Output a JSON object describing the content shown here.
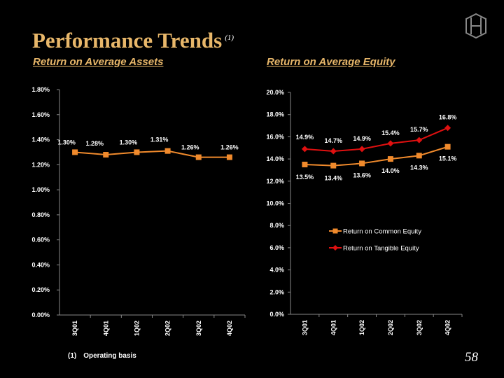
{
  "header": {
    "title": "Performance Trends",
    "title_footnote_marker": "(1)"
  },
  "footer": {
    "footnote_marker": "(1)",
    "footnote_text": "Operating basis",
    "page_number": "58"
  },
  "colors": {
    "title": "#e8b76a",
    "series_common": "#f08a2c",
    "series_tangible": "#e01010",
    "background": "#000000"
  },
  "chart_data": [
    {
      "type": "line",
      "title": "Return on Average Assets",
      "categories": [
        "3Q01",
        "4Q01",
        "1Q02",
        "2Q02",
        "3Q02",
        "4Q02"
      ],
      "series": [
        {
          "values": [
            1.3,
            1.28,
            1.3,
            1.31,
            1.26,
            1.26
          ],
          "labels": [
            "1.30%",
            "1.28%",
            "1.30%",
            "1.31%",
            "1.26%",
            "1.26%"
          ],
          "color": "#f08a2c",
          "marker": "square"
        }
      ],
      "ylim": [
        0,
        1.8
      ],
      "yticks": [
        "0.00%",
        "0.20%",
        "0.40%",
        "0.60%",
        "0.80%",
        "1.00%",
        "1.20%",
        "1.40%",
        "1.60%",
        "1.80%"
      ],
      "grid": false,
      "legend": "none"
    },
    {
      "type": "line",
      "title": "Return on Average Equity",
      "categories": [
        "3Q01",
        "4Q01",
        "1Q02",
        "2Q02",
        "3Q02",
        "4Q02"
      ],
      "series": [
        {
          "name": "Return on Common Equity",
          "values": [
            13.5,
            13.4,
            13.6,
            14.0,
            14.3,
            15.1
          ],
          "labels": [
            "13.5%",
            "13.4%",
            "13.6%",
            "14.0%",
            "14.3%",
            "15.1%"
          ],
          "color": "#f08a2c",
          "marker": "square"
        },
        {
          "name": "Return on Tangible Equity",
          "values": [
            14.9,
            14.7,
            14.9,
            15.4,
            15.7,
            16.8
          ],
          "labels": [
            "14.9%",
            "14.7%",
            "14.9%",
            "15.4%",
            "15.7%",
            "16.8%"
          ],
          "color": "#e01010",
          "marker": "diamond"
        }
      ],
      "ylim": [
        0,
        20
      ],
      "yticks": [
        "0.0%",
        "2.0%",
        "4.0%",
        "6.0%",
        "8.0%",
        "10.0%",
        "12.0%",
        "14.0%",
        "16.0%",
        "18.0%",
        "20.0%"
      ],
      "grid": false,
      "legend": "center-right"
    }
  ]
}
